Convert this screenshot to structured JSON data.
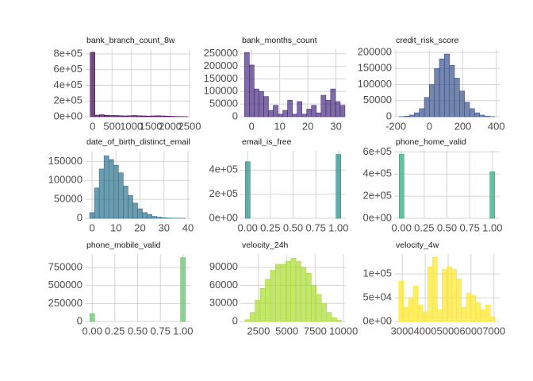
{
  "chart_data": [
    {
      "type": "histogram",
      "title": "bank_branch_count_8w",
      "color": "#440154",
      "bins": [
        -60,
        60,
        180,
        300,
        420,
        540,
        660,
        780,
        900,
        1020,
        1140,
        1260,
        1380,
        1500,
        1620,
        1740,
        1860,
        1980,
        2100,
        2220,
        2340,
        2460
      ],
      "values": [
        820000,
        20000,
        25000,
        18000,
        15000,
        15000,
        12000,
        10000,
        12000,
        15000,
        12000,
        10000,
        8000,
        10000,
        12000,
        10000,
        8000,
        5000,
        3000,
        2000,
        1000
      ],
      "xlim": [
        -200,
        2520
      ],
      "xticks": [
        0,
        500,
        1000,
        1500,
        2000,
        2500
      ],
      "ylim": [
        0,
        860000
      ],
      "yticks": [
        {
          "value": 0,
          "label": "0e+00"
        },
        {
          "value": 200000,
          "label": "2e+05"
        },
        {
          "value": 400000,
          "label": "4e+05"
        },
        {
          "value": 600000,
          "label": "6e+05"
        },
        {
          "value": 800000,
          "label": "8e+05"
        }
      ],
      "grid": true
    },
    {
      "type": "histogram",
      "title": "bank_months_count",
      "color": "#472D7B",
      "bins": [
        -2.5,
        -0.8,
        0.9,
        2.6,
        4.3,
        6.0,
        7.7,
        9.4,
        11.1,
        12.8,
        14.5,
        16.2,
        17.9,
        19.6,
        21.3,
        23.0,
        24.7,
        26.4,
        28.1,
        29.8,
        31.5,
        33.2
      ],
      "values": [
        255000,
        205000,
        110000,
        100000,
        80000,
        25000,
        45000,
        10000,
        25000,
        65000,
        10000,
        60000,
        10000,
        30000,
        45000,
        15000,
        85000,
        65000,
        110000,
        60000,
        45000
      ],
      "xlim": [
        -4,
        33.5
      ],
      "xticks": [
        0,
        10,
        20,
        30
      ],
      "ylim": [
        0,
        268000
      ],
      "yticks": [
        0,
        50000,
        100000,
        150000,
        200000,
        250000
      ],
      "grid": true
    },
    {
      "type": "histogram",
      "title": "credit_risk_score",
      "color": "#3B528B",
      "bins": [
        -180,
        -150,
        -120,
        -90,
        -60,
        -30,
        0,
        30,
        60,
        90,
        120,
        150,
        180,
        210,
        240,
        270,
        300,
        330,
        360,
        390
      ],
      "values": [
        500,
        1500,
        5000,
        12000,
        25000,
        60000,
        100000,
        150000,
        180000,
        195000,
        160000,
        120000,
        80000,
        45000,
        25000,
        12000,
        5000,
        1500,
        500
      ],
      "xlim": [
        -210,
        420
      ],
      "xticks": [
        -200,
        0,
        200,
        400
      ],
      "ylim": [
        0,
        210000
      ],
      "yticks": [
        0,
        50000,
        100000,
        150000,
        200000
      ],
      "grid": true
    },
    {
      "type": "histogram",
      "title": "date_of_birth_distinct_email",
      "color": "#2C728E",
      "bins": [
        -1,
        1,
        3,
        5,
        7,
        9,
        11,
        13,
        15,
        17,
        19,
        21,
        23,
        25,
        27,
        29,
        31,
        33,
        35,
        37,
        39
      ],
      "values": [
        15000,
        80000,
        130000,
        165000,
        155000,
        140000,
        120000,
        85000,
        60000,
        40000,
        25000,
        15000,
        10000,
        5000,
        3000,
        1500,
        800,
        400,
        200,
        100
      ],
      "xlim": [
        -3,
        41
      ],
      "xticks": [
        0,
        10,
        20,
        30,
        40
      ],
      "ylim": [
        0,
        178000
      ],
      "yticks": [
        0,
        50000,
        100000,
        150000
      ],
      "grid": true
    },
    {
      "type": "histogram",
      "title": "email_is_free",
      "color": "#21908C",
      "bins": [
        -0.025,
        0.0275,
        0.08,
        0.1325,
        0.185,
        0.2375,
        0.29,
        0.3425,
        0.395,
        0.4475,
        0.5,
        0.5525,
        0.605,
        0.6575,
        0.71,
        0.7625,
        0.815,
        0.8675,
        0.92,
        0.9725,
        1.025
      ],
      "values": [
        470000,
        0,
        0,
        0,
        0,
        0,
        0,
        0,
        0,
        0,
        0,
        0,
        0,
        0,
        0,
        0,
        0,
        0,
        0,
        530000
      ],
      "xlim": [
        -0.08,
        1.08
      ],
      "xticks": [
        {
          "value": 0,
          "label": "0.00"
        },
        0.25,
        {
          "value": 0.5,
          "label": "0.50"
        },
        0.75,
        {
          "value": 1,
          "label": "1.00"
        }
      ],
      "ylim": [
        0,
        560000
      ],
      "yticks": [
        {
          "value": 0,
          "label": "0e+00"
        },
        {
          "value": 200000,
          "label": "2e+05"
        },
        {
          "value": 400000,
          "label": "4e+05"
        }
      ],
      "grid": true
    },
    {
      "type": "histogram",
      "title": "phone_home_valid",
      "color": "#27AD81",
      "bins": [
        -0.025,
        0.0275,
        0.08,
        0.1325,
        0.185,
        0.2375,
        0.29,
        0.3425,
        0.395,
        0.4475,
        0.5,
        0.5525,
        0.605,
        0.6575,
        0.71,
        0.7625,
        0.815,
        0.8675,
        0.92,
        0.9725,
        1.025
      ],
      "values": [
        580000,
        0,
        0,
        0,
        0,
        0,
        0,
        0,
        0,
        0,
        0,
        0,
        0,
        0,
        0,
        0,
        0,
        0,
        0,
        420000
      ],
      "xlim": [
        -0.08,
        1.08
      ],
      "xticks": [
        {
          "value": 0,
          "label": "0.00"
        },
        0.25,
        {
          "value": 0.5,
          "label": "0.50"
        },
        0.75,
        {
          "value": 1,
          "label": "1.00"
        }
      ],
      "ylim": [
        0,
        610000
      ],
      "yticks": [
        {
          "value": 0,
          "label": "0e+00"
        },
        {
          "value": 200000,
          "label": "2e+05"
        },
        {
          "value": 400000,
          "label": "4e+05"
        },
        {
          "value": 600000,
          "label": "6e+05"
        }
      ],
      "grid": true
    },
    {
      "type": "histogram",
      "title": "phone_mobile_valid",
      "color": "#5DC863",
      "bins": [
        -0.025,
        0.0275,
        0.08,
        0.1325,
        0.185,
        0.2375,
        0.29,
        0.3425,
        0.395,
        0.4475,
        0.5,
        0.5525,
        0.605,
        0.6575,
        0.71,
        0.7625,
        0.815,
        0.8675,
        0.92,
        0.9725,
        1.025
      ],
      "values": [
        110000,
        0,
        0,
        0,
        0,
        0,
        0,
        0,
        0,
        0,
        0,
        0,
        0,
        0,
        0,
        0,
        0,
        0,
        0,
        890000
      ],
      "xlim": [
        -0.08,
        1.08
      ],
      "xticks": [
        {
          "value": 0,
          "label": "0.00"
        },
        0.25,
        {
          "value": 0.5,
          "label": "0.50"
        },
        0.75,
        {
          "value": 1,
          "label": "1.00"
        }
      ],
      "ylim": [
        0,
        940000
      ],
      "yticks": [
        0,
        250000,
        500000,
        750000
      ],
      "grid": true
    },
    {
      "type": "histogram",
      "title": "velocity_24h",
      "color": "#AADC32",
      "bins": [
        1300,
        1750,
        2200,
        2650,
        3100,
        3550,
        4000,
        4450,
        4900,
        5350,
        5800,
        6250,
        6700,
        7150,
        7600,
        8050,
        8500,
        8950,
        9400,
        9850
      ],
      "values": [
        3000,
        15000,
        35000,
        55000,
        70000,
        85000,
        95000,
        95000,
        100000,
        105000,
        100000,
        90000,
        80000,
        60000,
        45000,
        30000,
        15000,
        6000,
        2000
      ],
      "xlim": [
        900,
        10200
      ],
      "xticks": [
        2500,
        5000,
        7500,
        10000
      ],
      "ylim": [
        0,
        112000
      ],
      "yticks": [
        0,
        30000,
        60000,
        90000
      ],
      "grid": true
    },
    {
      "type": "histogram",
      "title": "velocity_4w",
      "color": "#FDE725",
      "bins": [
        2850,
        3060,
        3270,
        3480,
        3690,
        3900,
        4110,
        4320,
        4530,
        4740,
        4950,
        5160,
        5370,
        5580,
        5790,
        6000,
        6210,
        6420,
        6630,
        6840,
        7050
      ],
      "values": [
        85000,
        30000,
        50000,
        75000,
        35000,
        20000,
        115000,
        135000,
        25000,
        110000,
        115000,
        110000,
        90000,
        30000,
        60000,
        55000,
        40000,
        25000,
        35000,
        10000
      ],
      "xlim": [
        2650,
        7250
      ],
      "xticks": [
        3000,
        4000,
        5000,
        6000,
        7000
      ],
      "ylim": [
        0,
        142000
      ],
      "yticks": [
        {
          "value": 0,
          "label": "0e+00"
        },
        {
          "value": 50000,
          "label": "5e+04"
        },
        {
          "value": 100000,
          "label": "1e+05"
        }
      ],
      "grid": true
    }
  ]
}
